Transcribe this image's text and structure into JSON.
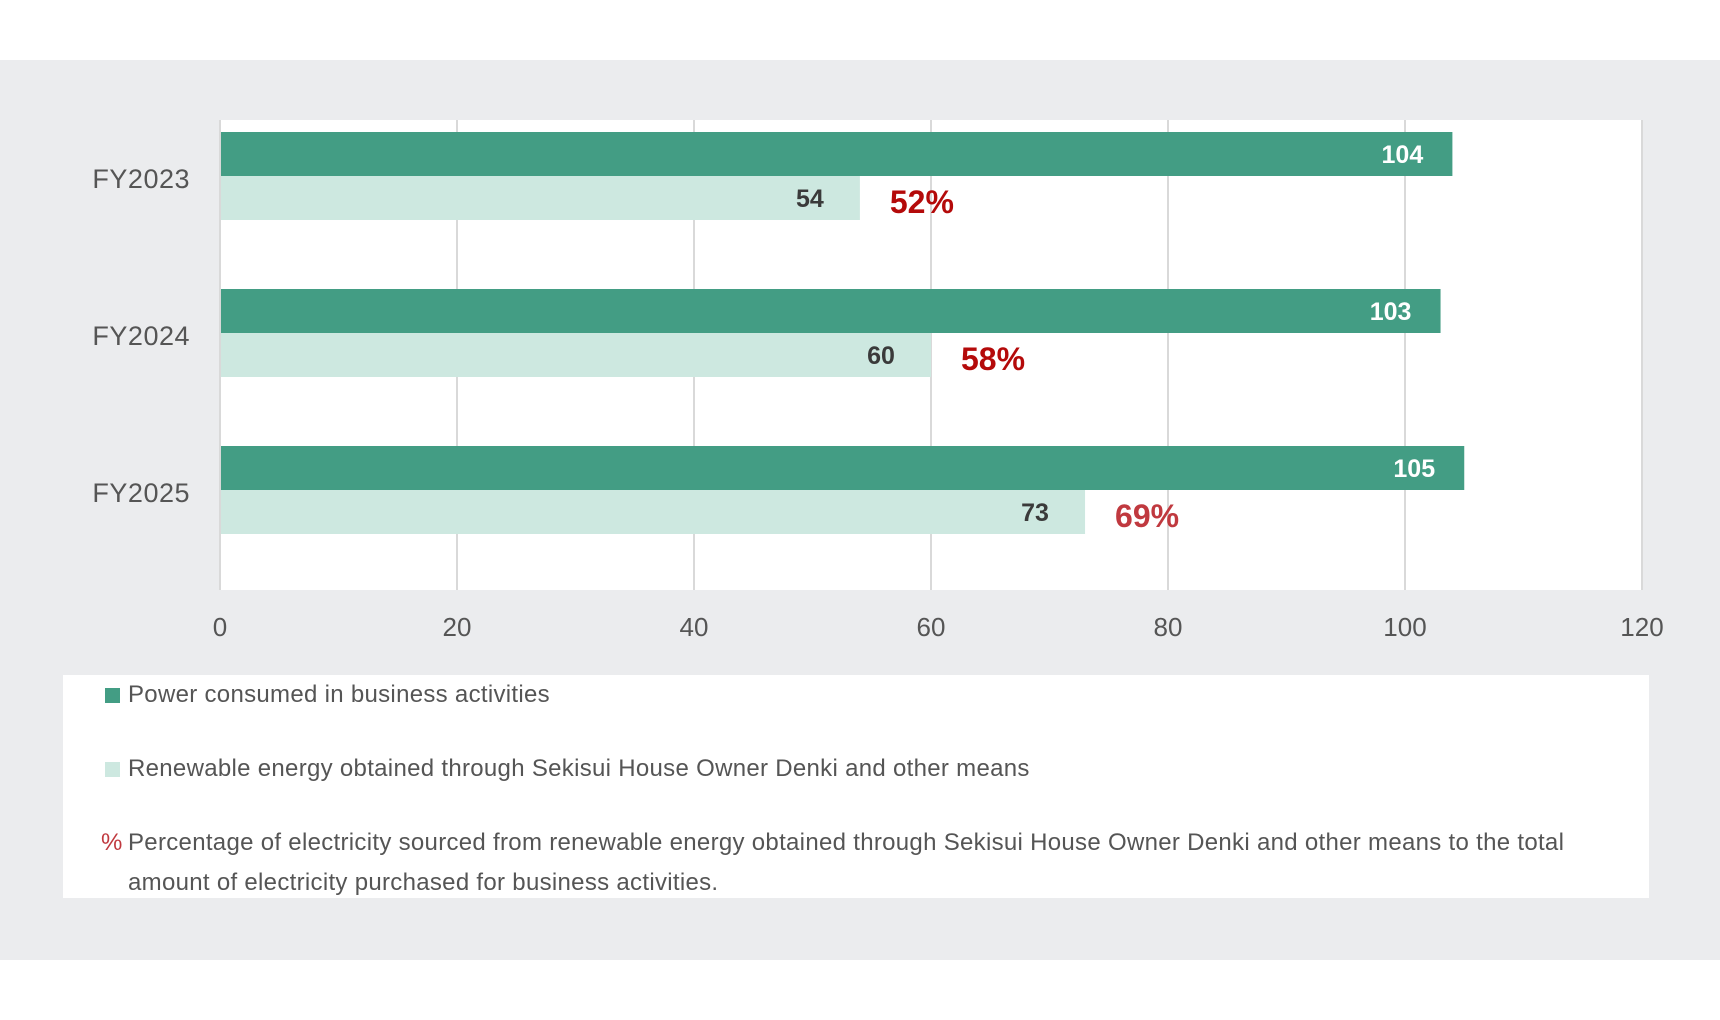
{
  "chart_data": {
    "type": "bar",
    "orientation": "horizontal",
    "title": "",
    "xlabel": "",
    "ylabel": "",
    "categories": [
      "FY2023",
      "FY2024",
      "FY2025"
    ],
    "series": [
      {
        "name": "Power consumed in business activities",
        "values": [
          104,
          103,
          105
        ],
        "color": "#439d84",
        "label_color": "#ffffff"
      },
      {
        "name": "Renewable energy obtained through Sekisui House Owner Denki and other means",
        "values": [
          54,
          60,
          73
        ],
        "color": "#cde8e0",
        "label_color": "#3a3a3a"
      }
    ],
    "percentages": [
      {
        "category": "FY2023",
        "label": "52%",
        "value": 52,
        "color": "#b40a0a"
      },
      {
        "category": "FY2024",
        "label": "58%",
        "value": 58,
        "color": "#b40a0a"
      },
      {
        "category": "FY2025",
        "label": "69%",
        "value": 69,
        "color": "#c0393f"
      }
    ],
    "xlim": [
      0,
      120
    ],
    "xticks": [
      0,
      20,
      40,
      60,
      80,
      100,
      120
    ],
    "xtick_labels": [
      "0",
      "20",
      "40",
      "60",
      "80",
      "100",
      "120"
    ],
    "grid": true,
    "legend_position": "bottom"
  },
  "legend": {
    "items": [
      {
        "label": "Power consumed in business activities",
        "color": "#439d84"
      },
      {
        "label": "Renewable energy obtained through Sekisui House Owner Denki and other means",
        "color": "#cde8e0"
      }
    ],
    "note_symbol": "%",
    "note_text": "Percentage of electricity sourced from renewable energy obtained through Sekisui House Owner Denki and other means to the total amount of electricity purchased for business activities.",
    "note_color": "#c0393f"
  }
}
